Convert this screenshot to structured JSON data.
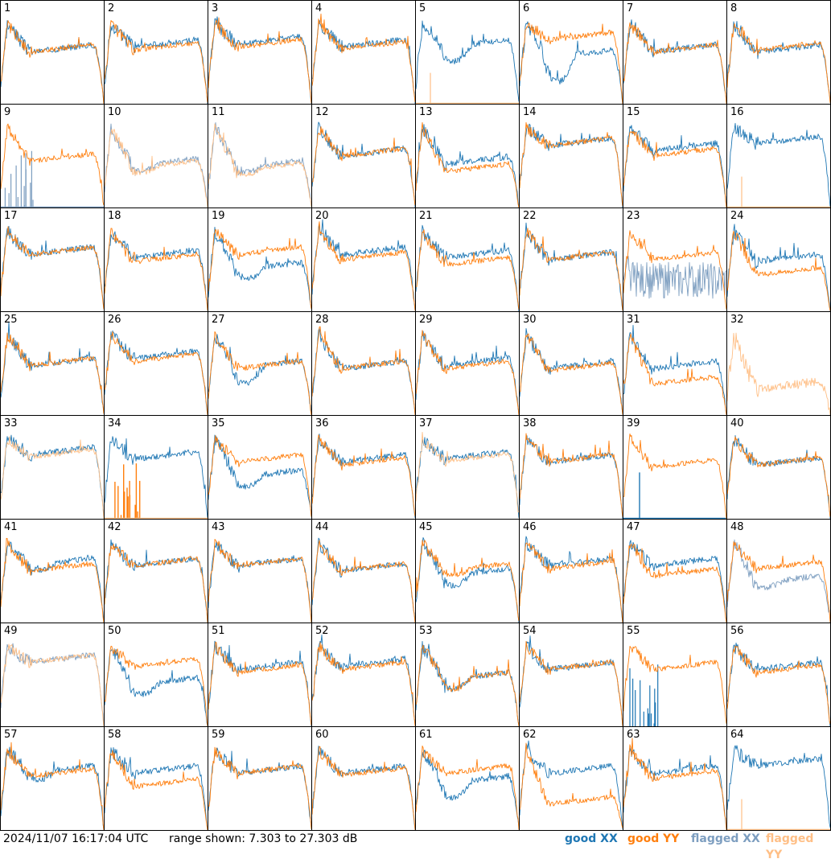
{
  "chart_data": {
    "type": "line",
    "units": "dB",
    "range": [
      7.303,
      27.303
    ],
    "series_colors": {
      "good_xx": "#1f77b4",
      "good_yy": "#ff7f0e",
      "flagged_xx": "#7d9ec0",
      "flagged_yy": "#ffbf86"
    },
    "panels": [
      {
        "label": "1",
        "xx": "good",
        "yy": "good",
        "xx_level": 0.5,
        "yy_level": 0.5,
        "xx_dip": 0,
        "yy_dip": 0
      },
      {
        "label": "2",
        "xx": "good",
        "yy": "good",
        "xx_level": 0.55,
        "yy_level": 0.52,
        "xx_dip": 0,
        "yy_dip": 0
      },
      {
        "label": "3",
        "xx": "good",
        "yy": "good",
        "xx_level": 0.58,
        "yy_level": 0.55,
        "xx_dip": 0,
        "yy_dip": 0
      },
      {
        "label": "4",
        "xx": "good",
        "yy": "good",
        "xx_level": 0.55,
        "yy_level": 0.53,
        "xx_dip": 0,
        "yy_dip": 0
      },
      {
        "label": "5",
        "xx": "good",
        "yy": "flagged_zero",
        "xx_level": 0.55,
        "yy_level": 0.0,
        "xx_dip": 0.3,
        "yy_dip": 0
      },
      {
        "label": "6",
        "xx": "good",
        "yy": "good",
        "xx_level": 0.45,
        "yy_level": 0.62,
        "xx_dip": 0.5,
        "yy_dip": 0
      },
      {
        "label": "7",
        "xx": "good",
        "yy": "good",
        "xx_level": 0.5,
        "yy_level": 0.5,
        "xx_dip": 0,
        "yy_dip": 0
      },
      {
        "label": "8",
        "xx": "good",
        "yy": "good",
        "xx_level": 0.5,
        "yy_level": 0.52,
        "xx_dip": 0,
        "yy_dip": 0
      },
      {
        "label": "9",
        "xx": "flagged_spikes",
        "yy": "good",
        "xx_level": 0.0,
        "yy_level": 0.45,
        "xx_dip": 0,
        "yy_dip": 0
      },
      {
        "label": "10",
        "xx": "flagged",
        "yy": "flagged",
        "xx_level": 0.4,
        "yy_level": 0.38,
        "xx_dip": 0.1,
        "yy_dip": 0.1
      },
      {
        "label": "11",
        "xx": "flagged",
        "yy": "flagged",
        "xx_level": 0.38,
        "yy_level": 0.36,
        "xx_dip": 0.1,
        "yy_dip": 0.1
      },
      {
        "label": "12",
        "xx": "good",
        "yy": "good",
        "xx_level": 0.5,
        "yy_level": 0.5,
        "xx_dip": 0,
        "yy_dip": 0
      },
      {
        "label": "13",
        "xx": "good",
        "yy": "good",
        "xx_level": 0.42,
        "yy_level": 0.35,
        "xx_dip": 0,
        "yy_dip": 0
      },
      {
        "label": "14",
        "xx": "good",
        "yy": "good",
        "xx_level": 0.6,
        "yy_level": 0.6,
        "xx_dip": 0,
        "yy_dip": 0
      },
      {
        "label": "15",
        "xx": "good",
        "yy": "good",
        "xx_level": 0.55,
        "yy_level": 0.5,
        "xx_dip": 0,
        "yy_dip": 0
      },
      {
        "label": "16",
        "xx": "good",
        "yy": "flagged_zero",
        "xx_level": 0.62,
        "yy_level": 0.0,
        "xx_dip": 0,
        "yy_dip": 0
      },
      {
        "label": "17",
        "xx": "good",
        "yy": "good",
        "xx_level": 0.55,
        "yy_level": 0.55,
        "xx_dip": 0,
        "yy_dip": 0
      },
      {
        "label": "18",
        "xx": "good",
        "yy": "good",
        "xx_level": 0.52,
        "yy_level": 0.48,
        "xx_dip": 0,
        "yy_dip": 0
      },
      {
        "label": "19",
        "xx": "good",
        "yy": "good",
        "xx_level": 0.4,
        "yy_level": 0.55,
        "xx_dip": 0.2,
        "yy_dip": 0
      },
      {
        "label": "20",
        "xx": "good",
        "yy": "good",
        "xx_level": 0.55,
        "yy_level": 0.5,
        "xx_dip": 0,
        "yy_dip": 0
      },
      {
        "label": "21",
        "xx": "good",
        "yy": "good",
        "xx_level": 0.52,
        "yy_level": 0.45,
        "xx_dip": 0,
        "yy_dip": 0
      },
      {
        "label": "22",
        "xx": "good",
        "yy": "good",
        "xx_level": 0.5,
        "yy_level": 0.5,
        "xx_dip": 0,
        "yy_dip": 0
      },
      {
        "label": "23",
        "xx": "flagged_noisy",
        "yy": "good",
        "xx_level": 0.3,
        "yy_level": 0.5,
        "xx_dip": 0,
        "yy_dip": 0
      },
      {
        "label": "24",
        "xx": "good",
        "yy": "good",
        "xx_level": 0.48,
        "yy_level": 0.35,
        "xx_dip": 0,
        "yy_dip": 0
      },
      {
        "label": "25",
        "xx": "good",
        "yy": "good",
        "xx_level": 0.48,
        "yy_level": 0.48,
        "xx_dip": 0,
        "yy_dip": 0
      },
      {
        "label": "26",
        "xx": "good",
        "yy": "good",
        "xx_level": 0.55,
        "yy_level": 0.52,
        "xx_dip": 0,
        "yy_dip": 0
      },
      {
        "label": "27",
        "xx": "good",
        "yy": "good",
        "xx_level": 0.45,
        "yy_level": 0.45,
        "xx_dip": 0.3,
        "yy_dip": 0
      },
      {
        "label": "28",
        "xx": "good",
        "yy": "good",
        "xx_level": 0.45,
        "yy_level": 0.45,
        "xx_dip": 0,
        "yy_dip": 0
      },
      {
        "label": "29",
        "xx": "good",
        "yy": "good",
        "xx_level": 0.48,
        "yy_level": 0.45,
        "xx_dip": 0,
        "yy_dip": 0
      },
      {
        "label": "30",
        "xx": "good",
        "yy": "good",
        "xx_level": 0.45,
        "yy_level": 0.43,
        "xx_dip": 0,
        "yy_dip": 0
      },
      {
        "label": "31",
        "xx": "good",
        "yy": "good",
        "xx_level": 0.45,
        "yy_level": 0.3,
        "xx_dip": 0,
        "yy_dip": 0
      },
      {
        "label": "32",
        "xx": "none",
        "yy": "flagged_noisy",
        "xx_level": 0.0,
        "yy_level": 0.25,
        "xx_dip": 0,
        "yy_dip": 0
      },
      {
        "label": "33",
        "xx": "good",
        "yy": "flagged",
        "xx_level": 0.62,
        "yy_level": 0.6,
        "xx_dip": 0,
        "yy_dip": 0
      },
      {
        "label": "34",
        "xx": "good",
        "yy": "flagged_spikes_orange",
        "xx_level": 0.58,
        "yy_level": 0.0,
        "xx_dip": 0,
        "yy_dip": 0
      },
      {
        "label": "35",
        "xx": "good",
        "yy": "good",
        "xx_level": 0.4,
        "yy_level": 0.55,
        "xx_dip": 0.2,
        "yy_dip": 0
      },
      {
        "label": "36",
        "xx": "good",
        "yy": "good",
        "xx_level": 0.55,
        "yy_level": 0.52,
        "xx_dip": 0,
        "yy_dip": 0
      },
      {
        "label": "37",
        "xx": "good",
        "yy": "flagged",
        "xx_level": 0.58,
        "yy_level": 0.56,
        "xx_dip": 0,
        "yy_dip": 0
      },
      {
        "label": "38",
        "xx": "good",
        "yy": "good",
        "xx_level": 0.55,
        "yy_level": 0.55,
        "xx_dip": 0,
        "yy_dip": 0
      },
      {
        "label": "39",
        "xx": "flagged_spike_single",
        "yy": "good",
        "xx_level": 0.0,
        "yy_level": 0.5,
        "xx_dip": 0,
        "yy_dip": 0
      },
      {
        "label": "40",
        "xx": "good",
        "yy": "good",
        "xx_level": 0.52,
        "yy_level": 0.52,
        "xx_dip": 0,
        "yy_dip": 0
      },
      {
        "label": "41",
        "xx": "good",
        "yy": "good",
        "xx_level": 0.55,
        "yy_level": 0.5,
        "xx_dip": 0.1,
        "yy_dip": 0
      },
      {
        "label": "42",
        "xx": "good",
        "yy": "good",
        "xx_level": 0.55,
        "yy_level": 0.55,
        "xx_dip": 0,
        "yy_dip": 0
      },
      {
        "label": "43",
        "xx": "good",
        "yy": "good",
        "xx_level": 0.55,
        "yy_level": 0.55,
        "xx_dip": 0,
        "yy_dip": 0
      },
      {
        "label": "44",
        "xx": "good",
        "yy": "good",
        "xx_level": 0.5,
        "yy_level": 0.5,
        "xx_dip": 0,
        "yy_dip": 0
      },
      {
        "label": "45",
        "xx": "good",
        "yy": "good",
        "xx_level": 0.45,
        "yy_level": 0.5,
        "xx_dip": 0.2,
        "yy_dip": 0.1
      },
      {
        "label": "46",
        "xx": "good",
        "yy": "good",
        "xx_level": 0.55,
        "yy_level": 0.52,
        "xx_dip": 0,
        "yy_dip": 0
      },
      {
        "label": "47",
        "xx": "good",
        "yy": "good",
        "xx_level": 0.55,
        "yy_level": 0.45,
        "xx_dip": 0,
        "yy_dip": 0
      },
      {
        "label": "48",
        "xx": "flagged",
        "yy": "good",
        "xx_level": 0.38,
        "yy_level": 0.52,
        "xx_dip": 0.1,
        "yy_dip": 0
      },
      {
        "label": "49",
        "xx": "flagged",
        "yy": "flagged",
        "xx_level": 0.62,
        "yy_level": 0.62,
        "xx_dip": 0,
        "yy_dip": 0
      },
      {
        "label": "50",
        "xx": "good",
        "yy": "good",
        "xx_level": 0.4,
        "yy_level": 0.58,
        "xx_dip": 0.2,
        "yy_dip": 0
      },
      {
        "label": "51",
        "xx": "good",
        "yy": "good",
        "xx_level": 0.55,
        "yy_level": 0.52,
        "xx_dip": 0,
        "yy_dip": 0
      },
      {
        "label": "52",
        "xx": "good",
        "yy": "good",
        "xx_level": 0.58,
        "yy_level": 0.55,
        "xx_dip": 0,
        "yy_dip": 0
      },
      {
        "label": "53",
        "xx": "good",
        "yy": "good",
        "xx_level": 0.45,
        "yy_level": 0.45,
        "xx_dip": 0.2,
        "yy_dip": 0.2
      },
      {
        "label": "54",
        "xx": "good",
        "yy": "good",
        "xx_level": 0.55,
        "yy_level": 0.55,
        "xx_dip": 0,
        "yy_dip": 0
      },
      {
        "label": "55",
        "xx": "good_spikes",
        "yy": "good",
        "xx_level": 0.0,
        "yy_level": 0.55,
        "xx_dip": 0,
        "yy_dip": 0
      },
      {
        "label": "56",
        "xx": "good",
        "yy": "good",
        "xx_level": 0.55,
        "yy_level": 0.52,
        "xx_dip": 0,
        "yy_dip": 0
      },
      {
        "label": "57",
        "xx": "good",
        "yy": "good",
        "xx_level": 0.55,
        "yy_level": 0.52,
        "xx_dip": 0.15,
        "yy_dip": 0
      },
      {
        "label": "58",
        "xx": "good",
        "yy": "good",
        "xx_level": 0.55,
        "yy_level": 0.42,
        "xx_dip": 0,
        "yy_dip": 0
      },
      {
        "label": "59",
        "xx": "good",
        "yy": "good",
        "xx_level": 0.55,
        "yy_level": 0.55,
        "xx_dip": 0,
        "yy_dip": 0
      },
      {
        "label": "60",
        "xx": "good",
        "yy": "good",
        "xx_level": 0.55,
        "yy_level": 0.53,
        "xx_dip": 0,
        "yy_dip": 0
      },
      {
        "label": "61",
        "xx": "good",
        "yy": "good",
        "xx_level": 0.45,
        "yy_level": 0.55,
        "xx_dip": 0.3,
        "yy_dip": 0
      },
      {
        "label": "62",
        "xx": "good",
        "yy": "good",
        "xx_level": 0.55,
        "yy_level": 0.25,
        "xx_dip": 0,
        "yy_dip": 0
      },
      {
        "label": "63",
        "xx": "good",
        "yy": "good",
        "xx_level": 0.55,
        "yy_level": 0.5,
        "xx_dip": 0,
        "yy_dip": 0
      },
      {
        "label": "64",
        "xx": "good",
        "yy": "flagged_zero",
        "xx_level": 0.62,
        "yy_level": 0.0,
        "xx_dip": 0,
        "yy_dip": 0
      }
    ]
  },
  "footer": {
    "timestamp": "2024/11/07 16:17:04 UTC",
    "range_text": "range shown: 7.303 to 27.303 dB",
    "legend": {
      "good_xx": "good XX",
      "good_yy": "good YY",
      "flagged_xx": "flagged XX",
      "flagged_yy": "flagged YY"
    }
  }
}
